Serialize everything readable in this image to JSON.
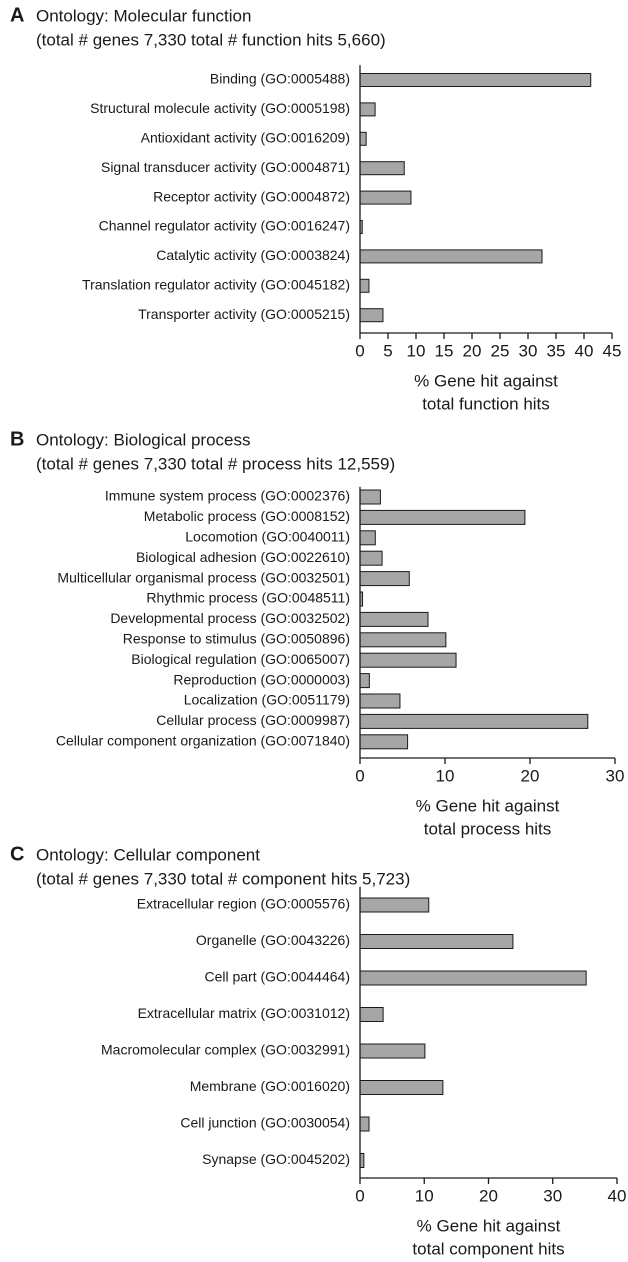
{
  "chart_data": [
    {
      "type": "barh",
      "panel": "A",
      "title": "Ontology: Molecular function",
      "subtitle": "(total # genes 7,330 total # function hits 5,660)",
      "categories": [
        "Binding (GO:0005488)",
        "Structural molecule activity (GO:0005198)",
        "Antioxidant activity (GO:0016209)",
        "Signal transducer activity (GO:0004871)",
        "Receptor activity (GO:0004872)",
        "Channel regulator activity (GO:0016247)",
        "Catalytic activity (GO:0003824)",
        "Translation regulator activity (GO:0045182)",
        "Transporter activity (GO:0005215)"
      ],
      "values": [
        41.2,
        2.7,
        1.1,
        7.9,
        9.1,
        0.4,
        32.5,
        1.6,
        4.1
      ],
      "color": "#a6a6a6",
      "xlim": [
        0,
        45
      ],
      "xticks": [
        0,
        5,
        10,
        15,
        20,
        25,
        30,
        35,
        40,
        45
      ],
      "xlabel": [
        "% Gene hit against",
        "total function hits"
      ]
    },
    {
      "type": "barh",
      "panel": "B",
      "title": "Ontology: Biological process",
      "subtitle": "(total # genes 7,330 total # process hits 12,559)",
      "categories": [
        "Immune system process (GO:0002376)",
        "Metabolic process (GO:0008152)",
        "Locomotion (GO:0040011)",
        "Biological adhesion (GO:0022610)",
        "Multicellular organismal process (GO:0032501)",
        "Rhythmic process (GO:0048511)",
        "Developmental process (GO:0032502)",
        "Response to stimulus (GO:0050896)",
        "Biological regulation (GO:0065007)",
        "Reproduction (GO:0000003)",
        "Localization (GO:0051179)",
        "Cellular process (GO:0009987)",
        "Cellular component organization (GO:0071840)"
      ],
      "values": [
        2.4,
        19.4,
        1.8,
        2.6,
        5.8,
        0.3,
        8.0,
        10.1,
        11.3,
        1.1,
        4.7,
        26.8,
        5.6
      ],
      "color": "#a6a6a6",
      "xlim": [
        0,
        30
      ],
      "xticks": [
        0,
        10,
        20,
        30
      ],
      "xlabel": [
        "% Gene hit against",
        "total process hits"
      ]
    },
    {
      "type": "barh",
      "panel": "C",
      "title": "Ontology: Cellular component",
      "subtitle": "(total # genes 7,330 total # component hits 5,723)",
      "categories": [
        "Extracellular region (GO:0005576)",
        "Organelle (GO:0043226)",
        "Cell part (GO:0044464)",
        "Extracellular matrix (GO:0031012)",
        "Macromolecular complex (GO:0032991)",
        "Membrane (GO:0016020)",
        "Cell junction (GO:0030054)",
        "Synapse (GO:0045202)"
      ],
      "values": [
        10.7,
        23.8,
        35.2,
        3.6,
        10.1,
        12.9,
        1.4,
        0.6
      ],
      "color": "#a6a6a6",
      "xlim": [
        0,
        40
      ],
      "xticks": [
        0,
        10,
        20,
        30,
        40
      ],
      "xlabel": [
        "% Gene hit against",
        "total component hits"
      ]
    }
  ]
}
